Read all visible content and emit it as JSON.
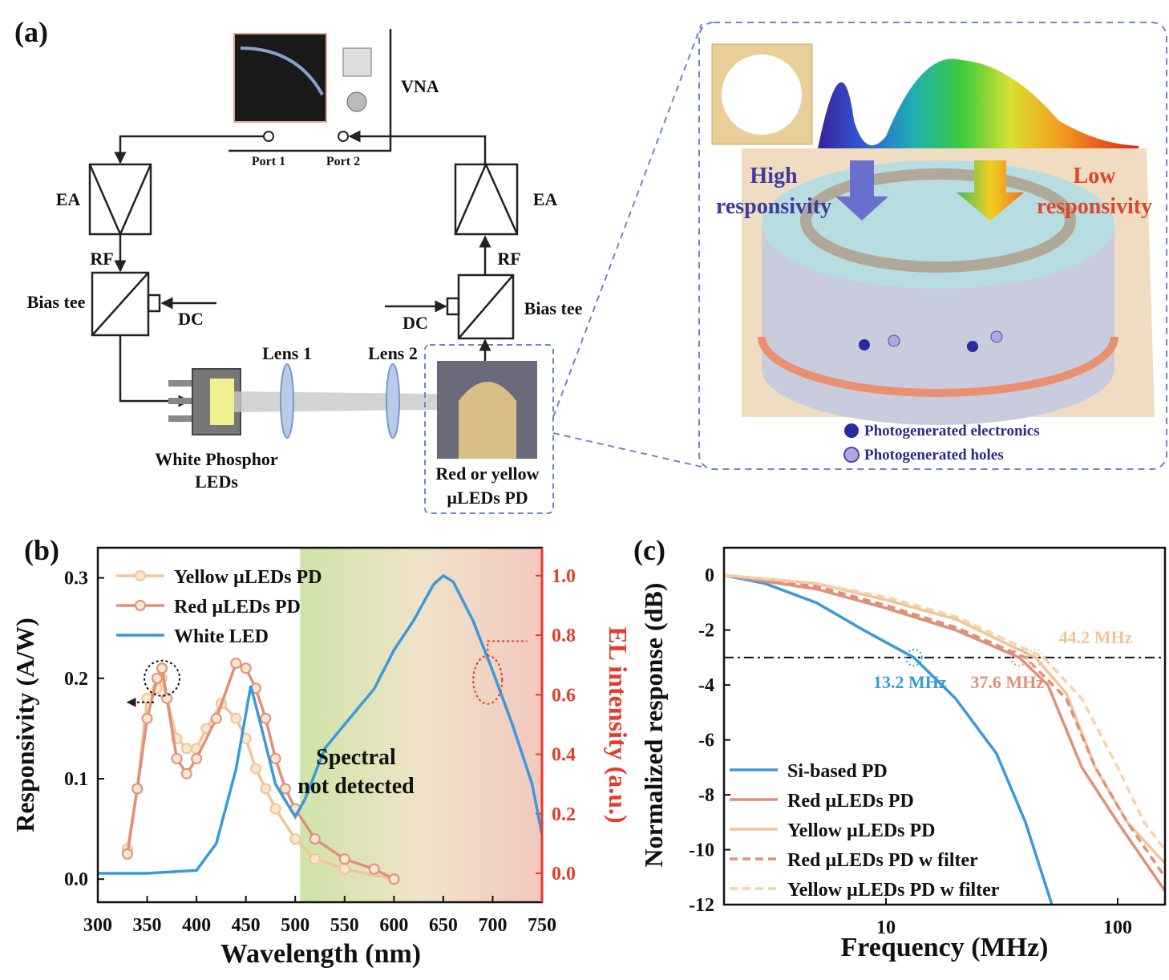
{
  "panel_a": {
    "panel_label": "(a)",
    "vna": "VNA",
    "port1": "Port 1",
    "port2": "Port 2",
    "ea_left": "EA",
    "ea_right": "EA",
    "rf_left": "RF",
    "rf_right": "RF",
    "bias_left": "Bias tee",
    "bias_right": "Bias tee",
    "dc_left": "DC",
    "dc_right": "DC",
    "lens1": "Lens 1",
    "lens2": "Lens 2",
    "led_label": [
      "White Phosphor",
      "LEDs"
    ],
    "pd_label": [
      "Red or yellow",
      "µLEDs PD"
    ],
    "high": [
      "High",
      "responsivity"
    ],
    "low": [
      "Low",
      "responsivity"
    ],
    "legend_electrons": "Photogenerated electronics",
    "legend_holes": "Photogenerated holes"
  },
  "chart_data": [
    {
      "type": "line",
      "panel_label": "(b)",
      "xlabel": "Wavelength (nm)",
      "ylabel": "Responsivity (A/W)",
      "y2label": "EL intensity (a.u.)",
      "y2color": "#e8392a",
      "xlim": [
        300,
        750
      ],
      "xticks": [
        300,
        350,
        400,
        450,
        500,
        550,
        600,
        650,
        700,
        750
      ],
      "ylim": [
        -0.023,
        0.33
      ],
      "yticks": [
        {
          "value": 0,
          "label": "0.0"
        },
        0.1,
        0.2,
        0.3
      ],
      "y2lim": [
        -0.097,
        1.094
      ],
      "y2ticks": [
        {
          "value": 0,
          "label": "0.0"
        },
        0.2,
        0.4,
        0.6,
        0.8,
        {
          "value": 1,
          "label": "1.0"
        }
      ],
      "shaded_range": [
        505,
        750
      ],
      "annotation": [
        "Spectral",
        "not detected"
      ],
      "legend": "upper left",
      "series": [
        {
          "name": "Yellow µLEDs PD",
          "color": "#f1c596",
          "marker": "circle",
          "x": [
            330,
            340,
            350,
            360,
            365,
            370,
            380,
            390,
            400,
            410,
            425,
            440,
            450,
            460,
            470,
            480,
            500,
            520,
            550,
            600
          ],
          "values": [
            0.03,
            0.09,
            0.18,
            0.19,
            0.2,
            0.18,
            0.14,
            0.13,
            0.13,
            0.15,
            0.175,
            0.16,
            0.14,
            0.11,
            0.09,
            0.07,
            0.04,
            0.02,
            0.01,
            0.0
          ]
        },
        {
          "name": "Red µLEDs PD",
          "color": "#e0907a",
          "marker": "circle",
          "x": [
            330,
            340,
            350,
            360,
            365,
            370,
            380,
            390,
            400,
            420,
            440,
            450,
            460,
            470,
            480,
            490,
            500,
            520,
            550,
            580,
            600
          ],
          "values": [
            0.025,
            0.09,
            0.16,
            0.2,
            0.21,
            0.18,
            0.12,
            0.105,
            0.12,
            0.16,
            0.215,
            0.21,
            0.19,
            0.16,
            0.12,
            0.09,
            0.07,
            0.04,
            0.02,
            0.01,
            0.0
          ]
        },
        {
          "name": "White LED",
          "color": "#3a9ad9",
          "axis": "y2",
          "x": [
            300,
            350,
            400,
            420,
            440,
            455,
            465,
            480,
            500,
            510,
            530,
            550,
            580,
            600,
            620,
            640,
            650,
            660,
            680,
            700,
            720,
            740,
            750
          ],
          "values": [
            0.0,
            0.0,
            0.01,
            0.1,
            0.35,
            0.63,
            0.5,
            0.3,
            0.19,
            0.25,
            0.42,
            0.5,
            0.62,
            0.75,
            0.85,
            0.97,
            1.0,
            0.98,
            0.85,
            0.68,
            0.5,
            0.3,
            0.13
          ]
        }
      ]
    },
    {
      "type": "line",
      "panel_label": "(c)",
      "xlabel": "Frequency (MHz)",
      "ylabel": "Normalized response (dB)",
      "xlog": true,
      "xlim": [
        2,
        160
      ],
      "xticks": [
        10,
        100
      ],
      "ylim": [
        -12,
        1
      ],
      "yticks": [
        0,
        -2,
        -4,
        -6,
        -8,
        -10,
        -12
      ],
      "reference_line": -3,
      "legend": "lower left",
      "cutoffs": [
        {
          "label": "13.2 MHz",
          "x": 13.2,
          "color": "#3a9ad9"
        },
        {
          "label": "37.6 MHz",
          "x": 37.6,
          "color": "#e0907a"
        },
        {
          "label": "44.2 MHz",
          "x": 44.2,
          "color": "#f1c596"
        }
      ],
      "series": [
        {
          "name": "Si-based PD",
          "color": "#3a9ad9",
          "x": [
            2,
            3,
            5,
            8,
            13.2,
            20,
            30,
            40,
            52
          ],
          "values": [
            0,
            -0.3,
            -1,
            -2,
            -3,
            -4.5,
            -6.5,
            -9,
            -12
          ]
        },
        {
          "name": "Red µLEDs PD",
          "color": "#e0907a",
          "x": [
            2,
            5,
            10,
            20,
            37.6,
            50,
            70,
            100,
            160
          ],
          "values": [
            0,
            -0.5,
            -1.2,
            -2,
            -3,
            -4,
            -7,
            -9,
            -11.5
          ]
        },
        {
          "name": "Yellow µLEDs PD",
          "color": "#f1c596",
          "x": [
            2,
            5,
            10,
            20,
            44.2,
            60,
            80,
            110,
            160
          ],
          "values": [
            0,
            -0.3,
            -0.9,
            -1.6,
            -3,
            -4.3,
            -7,
            -9,
            -10.5
          ]
        },
        {
          "name": "Red µLEDs PD w filter",
          "color": "#e0907a",
          "dash": true,
          "x": [
            2,
            5,
            10,
            20,
            40,
            60,
            80,
            110,
            160
          ],
          "values": [
            0,
            -0.4,
            -1.1,
            -1.9,
            -3,
            -4.5,
            -7,
            -9,
            -11
          ]
        },
        {
          "name": "Yellow µLEDs PD w filter",
          "color": "#f6d2aa",
          "dash": true,
          "x": [
            2,
            5,
            10,
            20,
            48,
            70,
            100,
            130,
            160
          ],
          "values": [
            0,
            -0.3,
            -0.8,
            -1.5,
            -3,
            -4.5,
            -7,
            -9,
            -10
          ]
        }
      ]
    }
  ]
}
